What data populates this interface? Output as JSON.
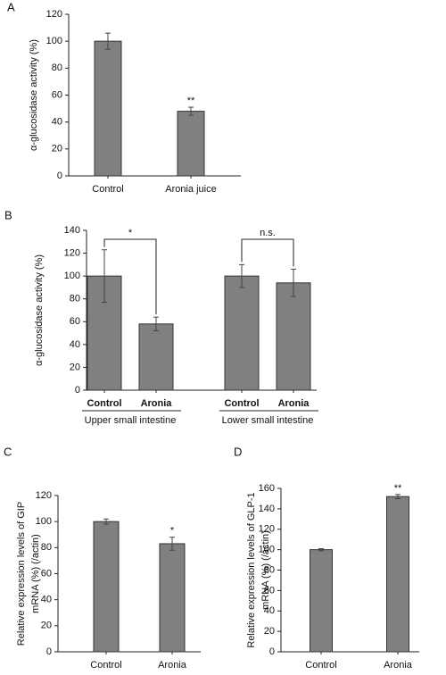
{
  "chart_data": [
    {
      "type": "bar",
      "panel": "A",
      "ylabel": [
        "α-glucosidase activity (%)"
      ],
      "categories": [
        "Control",
        "Aronia juice"
      ],
      "values": [
        100,
        48
      ],
      "errors": [
        6,
        3
      ],
      "annotations": [
        null,
        "**"
      ],
      "color": "#808080",
      "ylim": [
        0,
        120
      ],
      "yticks": [
        0,
        20,
        40,
        60,
        80,
        100,
        120
      ]
    },
    {
      "type": "bar",
      "panel": "B",
      "ylabel": [
        "α-glucosidase activity (%)"
      ],
      "categories": [
        "Control",
        "Aronia",
        "Control",
        "Aronia"
      ],
      "values": [
        100,
        58,
        100,
        94
      ],
      "errors": [
        23,
        6,
        10,
        12
      ],
      "groups": [
        "Upper small intestine",
        "Lower small intestine"
      ],
      "comparisons": [
        "*",
        "n.s."
      ],
      "color": "#808080",
      "ylim": [
        0,
        140
      ],
      "yticks": [
        0,
        20,
        40,
        60,
        80,
        100,
        120,
        140
      ]
    },
    {
      "type": "bar",
      "panel": "C",
      "ylabel": [
        "Relative expression levels of GIP",
        "mRNA (%) (/actin)"
      ],
      "categories": [
        "Control",
        "Aronia"
      ],
      "values": [
        100,
        83
      ],
      "errors": [
        2,
        5
      ],
      "annotations": [
        null,
        "*"
      ],
      "color": "#808080",
      "ylim": [
        0,
        120
      ],
      "yticks": [
        0,
        20,
        40,
        60,
        80,
        100,
        120
      ]
    },
    {
      "type": "bar",
      "panel": "D",
      "ylabel": [
        "Relative expression levels of GLP-1",
        "mRNA (%) (/actin)"
      ],
      "categories": [
        "Control",
        "Aronia"
      ],
      "values": [
        100,
        152
      ],
      "errors": [
        1,
        2
      ],
      "annotations": [
        null,
        "**"
      ],
      "color": "#808080",
      "ylim": [
        0,
        160
      ],
      "yticks": [
        0,
        20,
        40,
        60,
        80,
        100,
        120,
        140,
        160
      ]
    }
  ]
}
